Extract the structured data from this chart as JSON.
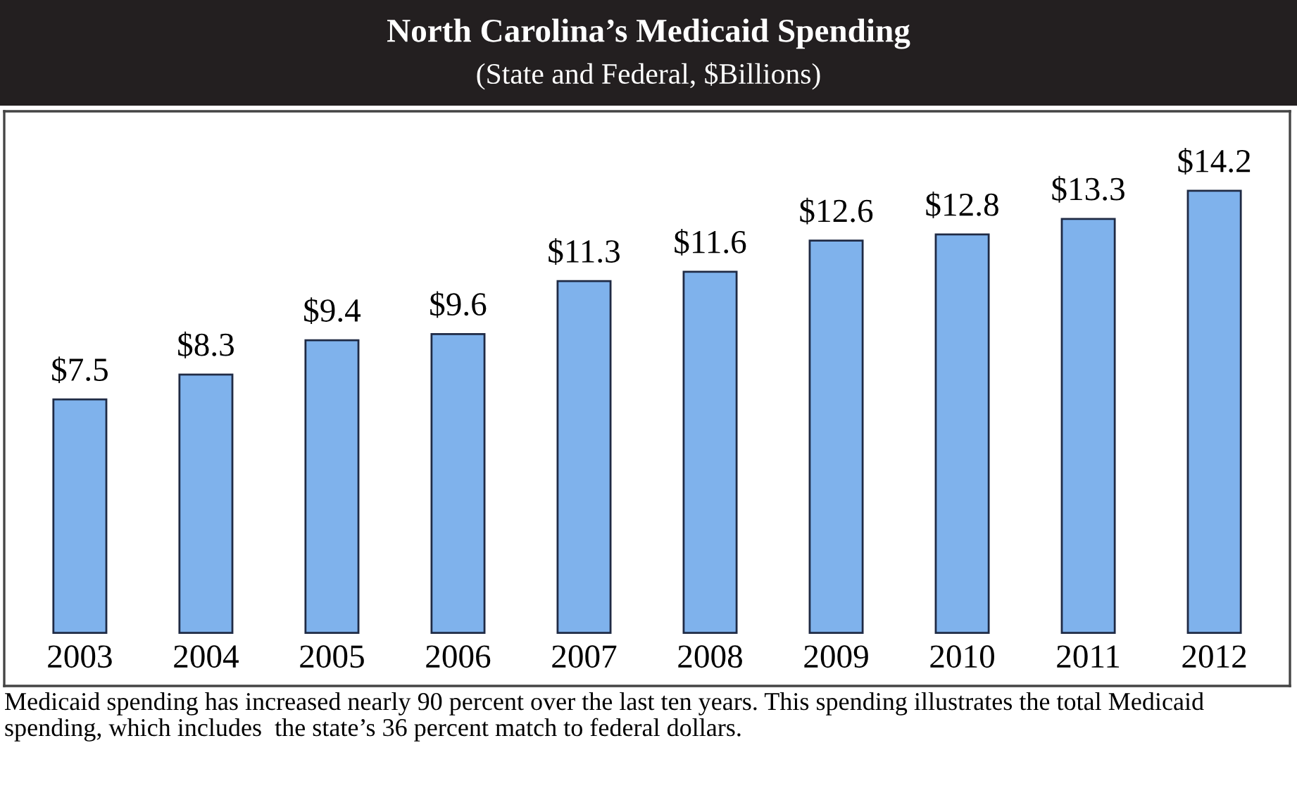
{
  "chart_data": {
    "type": "bar",
    "title": "North Carolina’s Medicaid Spending",
    "subtitle": "(State and Federal, $Billions)",
    "categories": [
      "2003",
      "2004",
      "2005",
      "2006",
      "2007",
      "2008",
      "2009",
      "2010",
      "2011",
      "2012"
    ],
    "values": [
      7.5,
      8.3,
      9.4,
      9.6,
      11.3,
      11.6,
      12.6,
      12.8,
      13.3,
      14.2
    ],
    "value_labels": [
      "$7.5",
      "$8.3",
      "$9.4",
      "$9.6",
      "$11.3",
      "$11.6",
      "$12.6",
      "$12.8",
      "$13.3",
      "$14.2"
    ],
    "color": "#7fb2ec",
    "annotations": [
      "Medicaid spending has increased nearly 90 percent over the last ten years. This spending illustrates the total Medicaid spending, which includes  the state’s 36 percent match to federal dollars."
    ]
  }
}
